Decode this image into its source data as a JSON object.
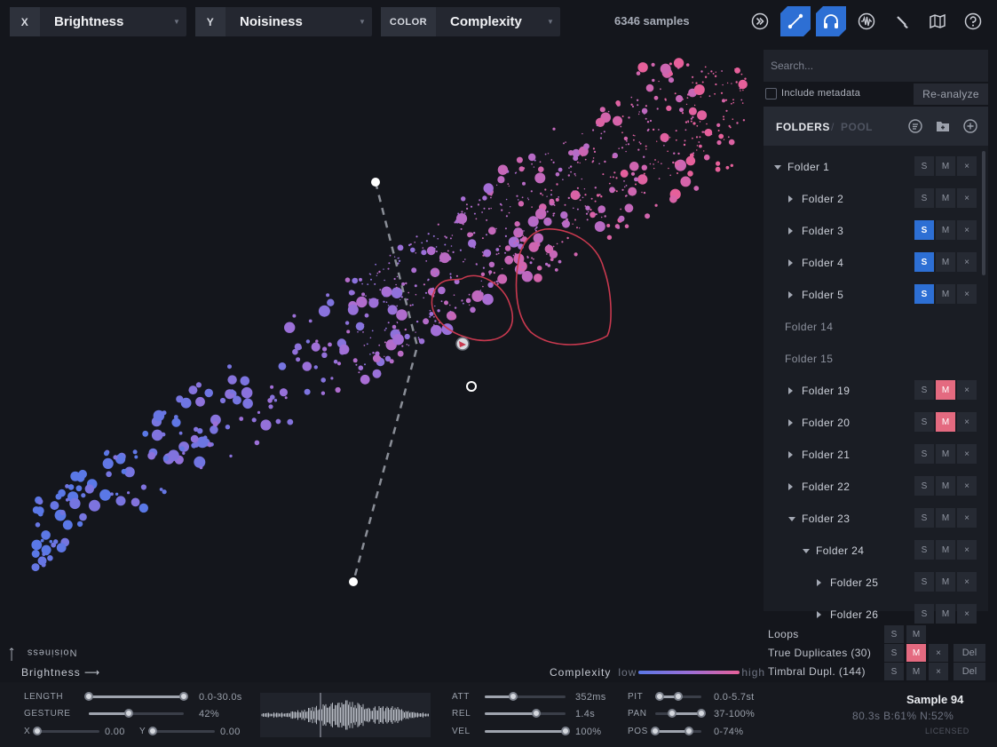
{
  "toolbar": {
    "x_axis": {
      "key": "X",
      "value": "Brightness"
    },
    "y_axis": {
      "key": "Y",
      "value": "Noisiness"
    },
    "color_axis": {
      "key": "COLOR",
      "value": "Complexity"
    },
    "sample_count": "6346 samples",
    "tools": [
      "fast-forward-icon",
      "line-tool-icon",
      "headphones-icon",
      "waveform-icon",
      "brush-icon",
      "map-icon",
      "help-icon"
    ],
    "active_tools": [
      "line-tool-icon",
      "headphones-icon"
    ]
  },
  "plot": {
    "x_label": "Brightness",
    "y_label": "Noisiness",
    "legend": {
      "title": "Complexity",
      "low": "low",
      "high": "high"
    },
    "colors": {
      "low": "#5a78e6",
      "mid": "#a66fd6",
      "high": "#e6609a",
      "lasso": "#c9394f"
    }
  },
  "panel": {
    "search_placeholder": "Search...",
    "include_metadata": "Include metadata",
    "include_metadata_checked": false,
    "reanalyze": "Re-analyze",
    "tab_folders": "FOLDERS",
    "tab_pool": "POOL",
    "btn_s": "S",
    "btn_m": "M",
    "btn_x": "×",
    "folders": [
      {
        "name": "Folder 1",
        "level": 0,
        "expander": "down",
        "s": false,
        "m": false,
        "buttons": true
      },
      {
        "name": "Folder 2",
        "level": 1,
        "expander": "right",
        "s": false,
        "m": false,
        "buttons": true
      },
      {
        "name": "Folder 3",
        "level": 1,
        "expander": "right",
        "s": true,
        "m": false,
        "buttons": true
      },
      {
        "name": "Folder 4",
        "level": 1,
        "expander": "right",
        "s": true,
        "m": false,
        "buttons": true
      },
      {
        "name": "Folder 5",
        "level": 1,
        "expander": "right",
        "s": true,
        "m": false,
        "buttons": true
      },
      {
        "name": "Folder 14",
        "level": 0,
        "expander": "none",
        "s": false,
        "m": false,
        "buttons": false
      },
      {
        "name": "Folder 15",
        "level": 0,
        "expander": "none",
        "s": false,
        "m": false,
        "buttons": false
      },
      {
        "name": "Folder 19",
        "level": 1,
        "expander": "right",
        "s": false,
        "m": true,
        "buttons": true
      },
      {
        "name": "Folder 20",
        "level": 1,
        "expander": "right",
        "s": false,
        "m": true,
        "buttons": true
      },
      {
        "name": "Folder 21",
        "level": 1,
        "expander": "right",
        "s": false,
        "m": false,
        "buttons": true
      },
      {
        "name": "Folder 22",
        "level": 1,
        "expander": "right",
        "s": false,
        "m": false,
        "buttons": true
      },
      {
        "name": "Folder 23",
        "level": 1,
        "expander": "down",
        "s": false,
        "m": false,
        "buttons": true
      },
      {
        "name": "Folder 24",
        "level": 2,
        "expander": "down",
        "s": false,
        "m": false,
        "buttons": true
      },
      {
        "name": "Folder 25",
        "level": 3,
        "expander": "right",
        "s": false,
        "m": false,
        "buttons": true
      },
      {
        "name": "Folder 26",
        "level": 3,
        "expander": "right",
        "s": false,
        "m": false,
        "buttons": true
      }
    ],
    "special": [
      {
        "name": "Loops",
        "s": false,
        "m": false,
        "extra": false
      },
      {
        "name": "True Duplicates (30)",
        "s": false,
        "m": true,
        "extra": true
      },
      {
        "name": "Timbral Dupl. (144)",
        "s": false,
        "m": false,
        "extra": true
      }
    ],
    "del": "Del"
  },
  "controls": {
    "length": {
      "label": "LENGTH",
      "value": "0.0-30.0s",
      "low": 0.0,
      "high": 1.0
    },
    "gesture": {
      "label": "GESTURE",
      "value": "42%",
      "level": 0.42
    },
    "x": {
      "label": "X",
      "value": "0.00",
      "level": 0.0
    },
    "y": {
      "label": "Y",
      "value": "0.00",
      "level": 0.0
    },
    "att": {
      "label": "ATT",
      "value": "352ms",
      "level": 0.35
    },
    "rel": {
      "label": "REL",
      "value": "1.4s",
      "level": 0.64
    },
    "vel": {
      "label": "VEL",
      "value": "100%",
      "level": 1.0
    },
    "pit": {
      "label": "PIT",
      "value": "0.0-5.7st",
      "low": 0.1,
      "high": 0.5
    },
    "pan": {
      "label": "PAN",
      "value": "37-100%",
      "low": 0.37,
      "high": 1.0
    },
    "pos": {
      "label": "POS",
      "value": "0-74%",
      "low": 0.0,
      "high": 0.74
    }
  },
  "sample": {
    "name": "Sample 94",
    "info": "80.3s  B:61%  N:52%",
    "license": "LICENSED"
  }
}
